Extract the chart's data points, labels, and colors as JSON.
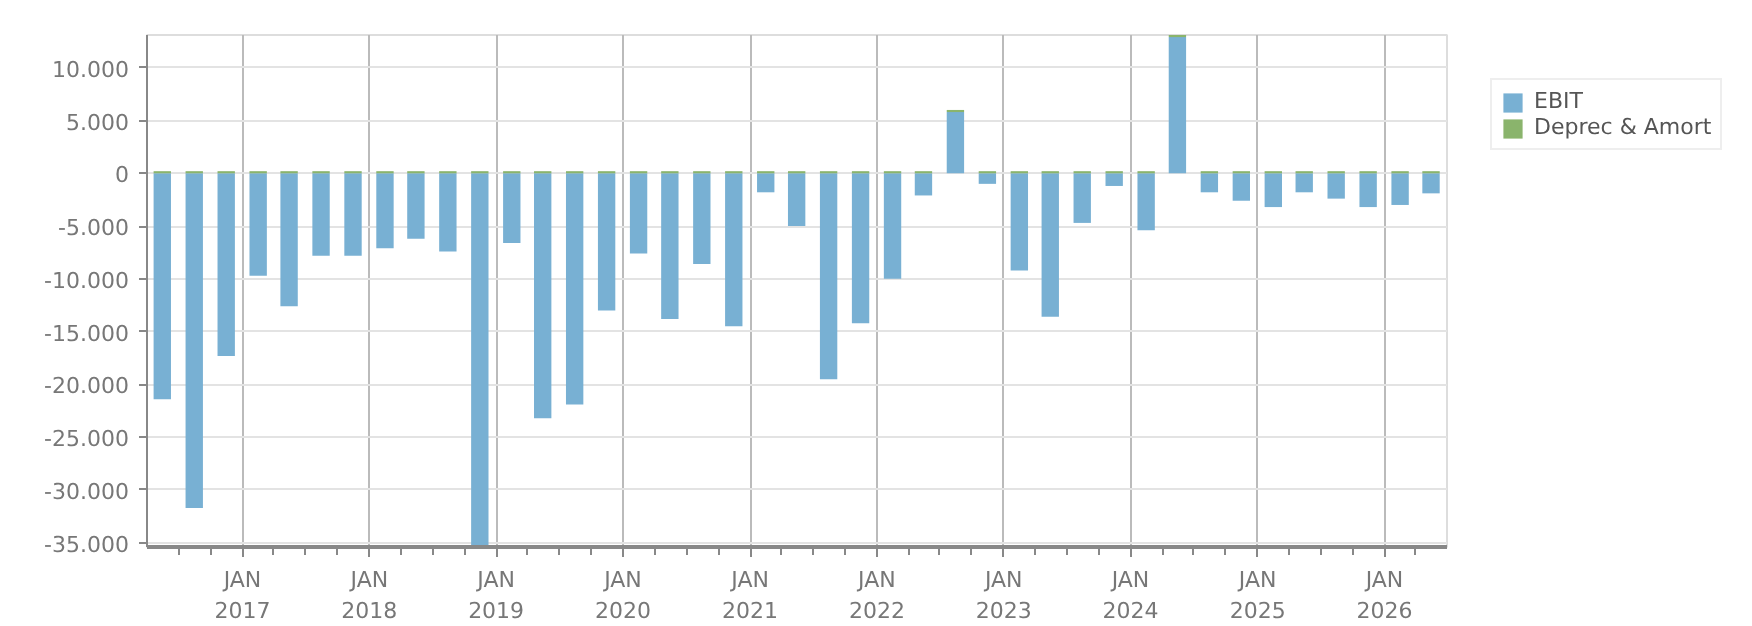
{
  "chart_data": {
    "type": "bar",
    "stacked": true,
    "x": [
      "2016-05-15",
      "2016-08-15",
      "2016-11-15",
      "2017-02-15",
      "2017-05-15",
      "2017-08-15",
      "2017-11-15",
      "2018-02-15",
      "2018-05-15",
      "2018-08-15",
      "2018-11-15",
      "2019-02-15",
      "2019-05-15",
      "2019-08-15",
      "2019-11-15",
      "2020-02-15",
      "2020-05-15",
      "2020-08-15",
      "2020-11-15",
      "2021-02-15",
      "2021-05-15",
      "2021-08-15",
      "2021-11-15",
      "2022-02-15",
      "2022-05-15",
      "2022-08-15",
      "2022-11-15",
      "2023-02-15",
      "2023-05-15",
      "2023-08-15",
      "2023-11-15",
      "2024-02-15",
      "2024-05-15",
      "2024-08-15",
      "2024-11-15",
      "2025-02-15",
      "2025-05-15",
      "2025-08-15",
      "2025-11-15",
      "2026-02-15",
      "2026-05-15"
    ],
    "series": [
      {
        "name": "EBIT",
        "color": "#78b0d3",
        "values": [
          -21400,
          -31700,
          -17300,
          -9700,
          -12600,
          -7800,
          -7800,
          -7100,
          -6200,
          -7400,
          -35400,
          -6600,
          -23200,
          -21900,
          -13000,
          -7600,
          -13800,
          -8600,
          -14500,
          -1800,
          -5000,
          -19500,
          -14200,
          -10000,
          -2100,
          5800,
          -1000,
          -9200,
          -13600,
          -4700,
          -1200,
          -5400,
          12900,
          -1800,
          -2600,
          -3200,
          -1800,
          -2400,
          -3200,
          -3000,
          -1900
        ]
      },
      {
        "name": "Deprec & Amort",
        "color": "#8ab46c",
        "values": [
          200,
          200,
          200,
          200,
          200,
          200,
          200,
          200,
          200,
          200,
          200,
          200,
          200,
          200,
          200,
          200,
          200,
          200,
          200,
          200,
          200,
          200,
          200,
          200,
          200,
          200,
          200,
          200,
          200,
          200,
          200,
          200,
          200,
          200,
          200,
          200,
          200,
          200,
          200,
          200,
          200
        ]
      }
    ],
    "xlim": [
      "2016-04-01",
      "2026-06-30"
    ],
    "xticks": [
      {
        "value": "2016-07-01",
        "label": null
      },
      {
        "value": "2016-10-01",
        "label": null
      },
      {
        "value": "2017-01-01",
        "label": "JAN\n2017"
      },
      {
        "value": "2017-04-01",
        "label": null
      },
      {
        "value": "2017-07-01",
        "label": null
      },
      {
        "value": "2017-10-01",
        "label": null
      },
      {
        "value": "2018-01-01",
        "label": "JAN\n2018"
      },
      {
        "value": "2018-04-01",
        "label": null
      },
      {
        "value": "2018-07-01",
        "label": null
      },
      {
        "value": "2018-10-01",
        "label": null
      },
      {
        "value": "2019-01-01",
        "label": "JAN\n2019"
      },
      {
        "value": "2019-04-01",
        "label": null
      },
      {
        "value": "2019-07-01",
        "label": null
      },
      {
        "value": "2019-10-01",
        "label": null
      },
      {
        "value": "2020-01-01",
        "label": "JAN\n2020"
      },
      {
        "value": "2020-04-01",
        "label": null
      },
      {
        "value": "2020-07-01",
        "label": null
      },
      {
        "value": "2020-10-01",
        "label": null
      },
      {
        "value": "2021-01-01",
        "label": "JAN\n2021"
      },
      {
        "value": "2021-04-01",
        "label": null
      },
      {
        "value": "2021-07-01",
        "label": null
      },
      {
        "value": "2021-10-01",
        "label": null
      },
      {
        "value": "2022-01-01",
        "label": "JAN\n2022"
      },
      {
        "value": "2022-04-01",
        "label": null
      },
      {
        "value": "2022-07-01",
        "label": null
      },
      {
        "value": "2022-10-01",
        "label": null
      },
      {
        "value": "2023-01-01",
        "label": "JAN\n2023"
      },
      {
        "value": "2023-04-01",
        "label": null
      },
      {
        "value": "2023-07-01",
        "label": null
      },
      {
        "value": "2023-10-01",
        "label": null
      },
      {
        "value": "2024-01-01",
        "label": "JAN\n2024"
      },
      {
        "value": "2024-04-01",
        "label": null
      },
      {
        "value": "2024-07-01",
        "label": null
      },
      {
        "value": "2024-10-01",
        "label": null
      },
      {
        "value": "2025-01-01",
        "label": "JAN\n2025"
      },
      {
        "value": "2025-04-01",
        "label": null
      },
      {
        "value": "2025-07-01",
        "label": null
      },
      {
        "value": "2025-10-01",
        "label": null
      },
      {
        "value": "2026-01-01",
        "label": "JAN\n2026"
      },
      {
        "value": "2026-04-01",
        "label": null
      }
    ],
    "ylim": [
      -35400,
      13100
    ],
    "yticks": [
      {
        "value": -35000,
        "label": "-35.000"
      },
      {
        "value": -30000,
        "label": "-30.000"
      },
      {
        "value": -25000,
        "label": "-25.000"
      },
      {
        "value": -20000,
        "label": "-20.000"
      },
      {
        "value": -15000,
        "label": "-15.000"
      },
      {
        "value": -10000,
        "label": "-10.000"
      },
      {
        "value": -5000,
        "label": "-5.000"
      },
      {
        "value": 0,
        "label": "0"
      },
      {
        "value": 5000,
        "label": "5.000"
      },
      {
        "value": 10000,
        "label": "10.000"
      }
    ],
    "grid": true,
    "legend": "top right"
  }
}
